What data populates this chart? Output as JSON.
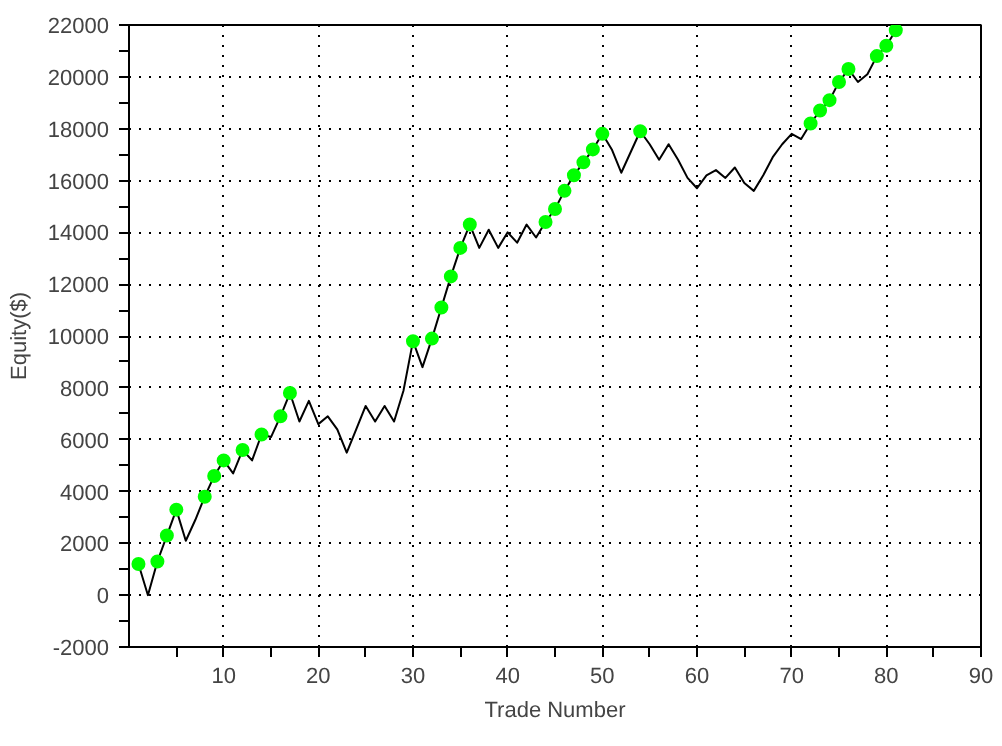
{
  "chart_data": {
    "type": "line",
    "xlabel": "Trade Number",
    "ylabel": "Equity($)",
    "xlim": [
      0,
      90
    ],
    "ylim": [
      -2000,
      22000
    ],
    "xticks": [
      {
        "value": 5,
        "label": null
      },
      10,
      {
        "value": 15,
        "label": null
      },
      20,
      {
        "value": 25,
        "label": null
      },
      30,
      {
        "value": 35,
        "label": null
      },
      40,
      {
        "value": 45,
        "label": null
      },
      50,
      {
        "value": 55,
        "label": null
      },
      60,
      {
        "value": 65,
        "label": null
      },
      70,
      {
        "value": 75,
        "label": null
      },
      80,
      {
        "value": 85,
        "label": null
      },
      90
    ],
    "yticks": [
      -2000,
      {
        "value": -1000,
        "label": null
      },
      0,
      {
        "value": 1000,
        "label": null
      },
      2000,
      {
        "value": 3000,
        "label": null
      },
      4000,
      {
        "value": 5000,
        "label": null
      },
      6000,
      {
        "value": 7000,
        "label": null
      },
      8000,
      {
        "value": 9000,
        "label": null
      },
      10000,
      {
        "value": 11000,
        "label": null
      },
      12000,
      {
        "value": 13000,
        "label": null
      },
      14000,
      {
        "value": 15000,
        "label": null
      },
      16000,
      {
        "value": 17000,
        "label": null
      },
      18000,
      {
        "value": 19000,
        "label": null
      },
      20000,
      {
        "value": 21000,
        "label": null
      },
      22000
    ],
    "grid": true,
    "series": [
      {
        "color": "#000000",
        "marker": "none",
        "x": [
          1,
          2,
          3,
          4,
          5,
          6,
          7,
          8,
          9,
          10,
          11,
          12,
          13,
          14,
          15,
          16,
          17,
          18,
          19,
          20,
          21,
          22,
          23,
          24,
          25,
          26,
          27,
          28,
          29,
          30,
          31,
          32,
          33,
          34,
          35,
          36,
          37,
          38,
          39,
          40,
          41,
          42,
          43,
          44,
          45,
          46,
          47,
          48,
          49,
          50,
          51,
          52,
          53,
          54,
          55,
          56,
          57,
          58,
          59,
          60,
          61,
          62,
          63,
          64,
          65,
          66,
          67,
          68,
          69,
          70,
          71,
          72,
          73,
          74,
          75,
          76,
          77,
          78,
          79,
          80,
          81
        ],
        "values": [
          1200,
          0,
          1300,
          2300,
          3300,
          2100,
          2900,
          3800,
          4600,
          5200,
          4700,
          5600,
          5200,
          6200,
          6100,
          6900,
          7800,
          6700,
          7500,
          6600,
          6900,
          6400,
          5500,
          6400,
          7300,
          6700,
          7300,
          6700,
          7900,
          9800,
          8800,
          9900,
          11100,
          12300,
          13400,
          14300,
          13400,
          14100,
          13400,
          14000,
          13600,
          14300,
          13800,
          14400,
          14900,
          15600,
          16200,
          16700,
          17200,
          17800,
          17200,
          16300,
          17100,
          17900,
          17400,
          16800,
          17400,
          16800,
          16100,
          15700,
          16200,
          16400,
          16100,
          16500,
          15900,
          15600,
          16200,
          16900,
          17400,
          17800,
          17600,
          18200,
          18700,
          19100,
          19800,
          20300,
          19800,
          20100,
          20800,
          21200,
          21800
        ]
      },
      {
        "type": "scatter",
        "color": "#00ff00",
        "marker": "circle",
        "x": [
          1,
          3,
          4,
          5,
          8,
          9,
          10,
          12,
          14,
          16,
          17,
          30,
          32,
          33,
          34,
          35,
          36,
          44,
          45,
          46,
          47,
          48,
          49,
          50,
          54,
          72,
          73,
          74,
          75,
          76,
          79,
          80,
          81
        ],
        "values": [
          1200,
          1300,
          2300,
          3300,
          3800,
          4600,
          5200,
          5600,
          6200,
          6900,
          7800,
          9800,
          9900,
          11100,
          12300,
          13400,
          14300,
          14400,
          14900,
          15600,
          16200,
          16700,
          17200,
          17800,
          17900,
          18200,
          18700,
          19100,
          19800,
          20300,
          20800,
          21200,
          21800
        ]
      }
    ]
  }
}
